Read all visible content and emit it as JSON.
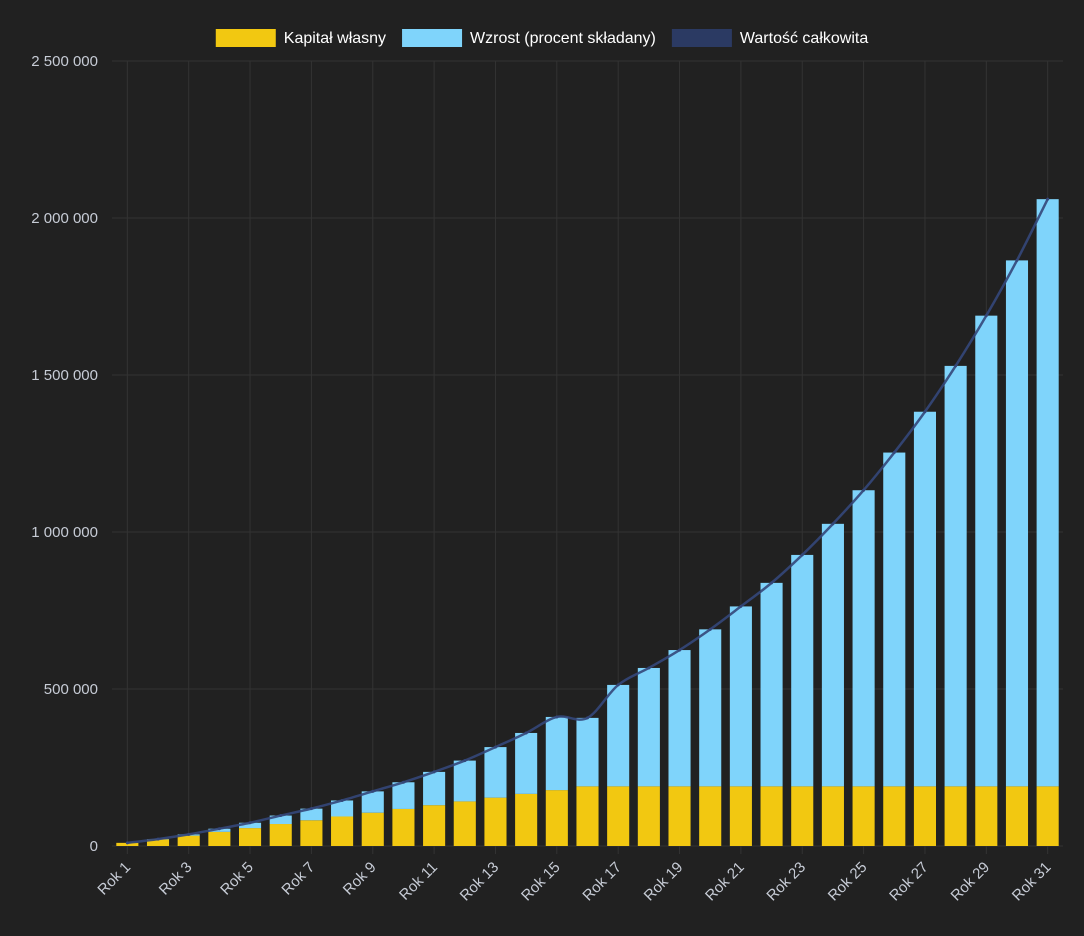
{
  "chart_data": {
    "type": "bar",
    "stacked": true,
    "categories": [
      "Rok 1",
      "Rok 2",
      "Rok 3",
      "Rok 4",
      "Rok 5",
      "Rok 6",
      "Rok 7",
      "Rok 8",
      "Rok 9",
      "Rok 10",
      "Rok 11",
      "Rok 12",
      "Rok 13",
      "Rok 14",
      "Rok 15",
      "Rok 16",
      "Rok 17",
      "Rok 18",
      "Rok 19",
      "Rok 20",
      "Rok 21",
      "Rok 22",
      "Rok 23",
      "Rok 24",
      "Rok 25",
      "Rok 26",
      "Rok 27",
      "Rok 28",
      "Rok 29",
      "Rok 30",
      "Rok 31"
    ],
    "x_tick_labels": [
      "Rok 1",
      "Rok 3",
      "Rok 5",
      "Rok 7",
      "Rok 9",
      "Rok 11",
      "Rok 13",
      "Rok 15",
      "Rok 17",
      "Rok 19",
      "Rok 21",
      "Rok 23",
      "Rok 25",
      "Rok 27",
      "Rok 29",
      "Rok 31"
    ],
    "series": [
      {
        "name": "Kapitał własny",
        "color": "#f2c811",
        "values": [
          10000,
          21000,
          33000,
          45000,
          57000,
          70000,
          82000,
          94000,
          106000,
          118000,
          130000,
          142000,
          154000,
          166000,
          178000,
          190000,
          190000,
          190000,
          190000,
          190000,
          190000,
          190000,
          190000,
          190000,
          190000,
          190000,
          190000,
          190000,
          190000,
          190000,
          190000
        ]
      },
      {
        "name": "Wzrost (procent składany)",
        "color": "#7fd4fb",
        "values": [
          0,
          1000,
          4000,
          10000,
          17000,
          27000,
          37000,
          51000,
          68000,
          85000,
          106000,
          130000,
          161000,
          194000,
          233000,
          218000,
          323000,
          377000,
          434000,
          500000,
          573000,
          648000,
          737000,
          836000,
          943000,
          1063000,
          1193000,
          1339000,
          1499000,
          1675000,
          1870000
        ]
      },
      {
        "name": "Wartość całkowita",
        "type": "line",
        "color": "#2b3a63",
        "values": [
          10000,
          22000,
          37000,
          55000,
          74000,
          97000,
          119000,
          145000,
          174000,
          203000,
          236000,
          272000,
          315000,
          360000,
          411000,
          408000,
          513000,
          567000,
          624000,
          690000,
          763000,
          838000,
          927000,
          1026000,
          1133000,
          1253000,
          1383000,
          1529000,
          1689000,
          1865000,
          2060000
        ]
      }
    ],
    "y_ticks": [
      "0",
      "500 000",
      "1 000 000",
      "1 500 000",
      "2 000 000",
      "2 500 000"
    ],
    "ylim": [
      0,
      2500000
    ],
    "grid": true,
    "legend_position": "top-center",
    "title": "",
    "xlabel": "",
    "ylabel": ""
  },
  "colors": {
    "background": "#212121",
    "grid": "#333333",
    "axis_text": "#c7ccd6",
    "legend_text": "#ffffff"
  }
}
